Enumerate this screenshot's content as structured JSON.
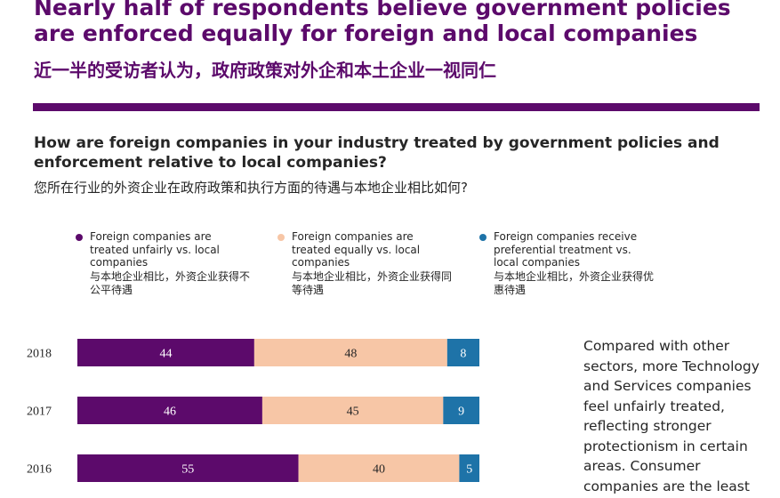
{
  "header": {
    "title": "Nearly half of respondents believe government policies are enforced equally for foreign and local companies",
    "title_cn": "近一半的受访者认为，政府政策对外企和本土企业一视同仁"
  },
  "question": {
    "text": "How are foreign companies in your industry treated by government policies and enforcement relative to local companies?",
    "text_cn": "您所在行业的外资企业在政府政策和执行方面的待遇与本地企业相比如何?"
  },
  "legend": [
    {
      "label": "Foreign companies are treated unfairly vs. local companies",
      "label_cn": "与本地企业相比，外资企业获得不公平待遇",
      "color": "#5c0a6b"
    },
    {
      "label": "Foreign companies are treated equally vs. local companies",
      "label_cn": "与本地企业相比，外资企业获得同等待遇",
      "color": "#f7c6a6"
    },
    {
      "label": "Foreign companies receive preferential treatment vs. local companies",
      "label_cn": "与本地企业相比，外资企业获得优惠待遇",
      "color": "#1e73a8"
    }
  ],
  "chart_data": {
    "type": "bar",
    "orientation": "horizontal",
    "stacked": true,
    "categories": [
      "2018",
      "2017",
      "2016"
    ],
    "series": [
      {
        "name": "Foreign companies are treated unfairly vs. local companies",
        "values": [
          44,
          46,
          55
        ],
        "color": "#5c0a6b",
        "label_color": "#ffffff"
      },
      {
        "name": "Foreign companies are treated equally vs. local companies",
        "values": [
          48,
          45,
          40
        ],
        "color": "#f7c6a6",
        "label_color": "#262626"
      },
      {
        "name": "Foreign companies receive preferential treatment vs. local companies",
        "values": [
          8,
          9,
          5
        ],
        "color": "#1e73a8",
        "label_color": "#ffffff"
      }
    ],
    "xlim": [
      0,
      100
    ],
    "grid": false,
    "legend_position": "top"
  },
  "side_note": {
    "text": "Compared with other sectors, more Technology and Services companies feel unfairly treated, reflecting stronger protectionism in certain areas. Consumer companies are the least"
  }
}
